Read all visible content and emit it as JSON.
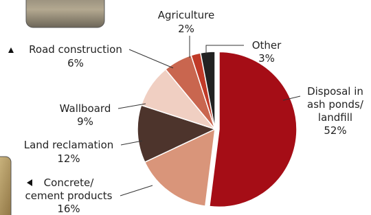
{
  "chart_data": {
    "type": "pie",
    "categories": [
      "Disposal in\nash ponds/\nlandfill",
      "Concrete/\ncement products",
      "Land reclamation",
      "Wallboard",
      "Road construction",
      "Agriculture",
      "Other"
    ],
    "values": [
      52,
      16,
      12,
      9,
      6,
      2,
      3
    ],
    "value_labels": [
      "52%",
      "16%",
      "12%",
      "9%",
      "6%",
      "2%",
      "3%"
    ],
    "colors": [
      "#a50d16",
      "#d9957a",
      "#4d342c",
      "#f0cfc2",
      "#c9664f",
      "#c03a28",
      "#222222"
    ],
    "exploded": [
      true,
      false,
      false,
      false,
      false,
      false,
      false
    ]
  }
}
